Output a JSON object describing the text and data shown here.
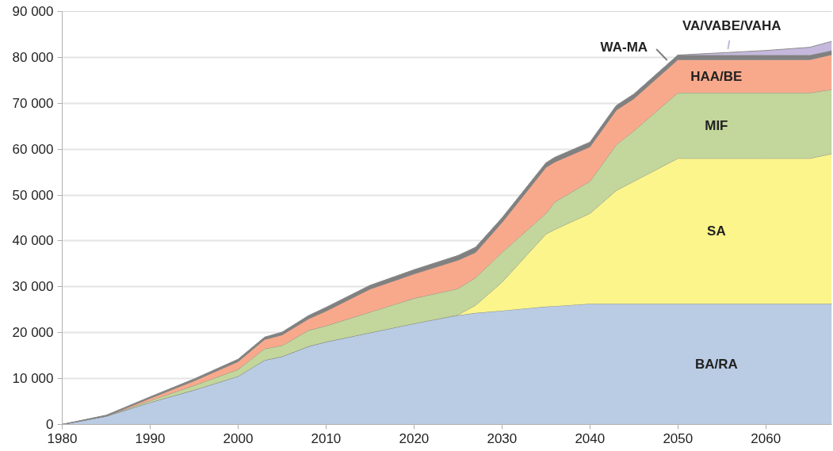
{
  "chart_data": {
    "type": "area",
    "stacked": true,
    "grid": "y",
    "x": [
      1980,
      1985,
      1990,
      1995,
      2000,
      2003,
      2005,
      2008,
      2010,
      2015,
      2020,
      2025,
      2027,
      2030,
      2035,
      2036,
      2040,
      2043,
      2045,
      2050,
      2060,
      2065,
      2067.5
    ],
    "series": [
      {
        "name": "BA/RA",
        "color": "#b9cce4",
        "values": [
          0,
          1800,
          4800,
          7500,
          10500,
          14000,
          14800,
          17000,
          18000,
          20000,
          22000,
          23800,
          24300,
          24800,
          25700,
          25800,
          26300,
          26300,
          26300,
          26300,
          26300,
          26300,
          26300
        ]
      },
      {
        "name": "SA",
        "color": "#fbf58c",
        "values": [
          0,
          0,
          0,
          0,
          0,
          0,
          0,
          0,
          0,
          0,
          0,
          100,
          1700,
          6200,
          15800,
          16700,
          19700,
          24700,
          26700,
          31700,
          31700,
          31700,
          32700
        ]
      },
      {
        "name": "MIF",
        "color": "#c3d69b",
        "values": [
          0,
          0,
          400,
          1000,
          1500,
          2500,
          2400,
          3500,
          3500,
          4500,
          5500,
          5700,
          6000,
          6500,
          4500,
          6000,
          7000,
          10000,
          11000,
          14300,
          14300,
          14300,
          14000
        ]
      },
      {
        "name": "HAA/BE",
        "color": "#f9a98b",
        "values": [
          0,
          0,
          500,
          1000,
          1700,
          2000,
          2300,
          2500,
          3200,
          5000,
          5300,
          6200,
          5500,
          6500,
          10000,
          8700,
          7500,
          7500,
          7000,
          7200,
          7200,
          7200,
          7600
        ]
      },
      {
        "name": "WA-MA",
        "color": "#808080",
        "values": [
          0,
          200,
          300,
          400,
          500,
          500,
          600,
          700,
          800,
          800,
          900,
          1000,
          1100,
          1000,
          1000,
          1000,
          1000,
          1000,
          1000,
          1000,
          1000,
          1000,
          900
        ]
      },
      {
        "name": "VA/VABE/VAHA",
        "color": "#c5b8dc",
        "values": [
          0,
          0,
          0,
          0,
          0,
          0,
          0,
          0,
          0,
          0,
          0,
          0,
          0,
          0,
          0,
          0,
          0,
          0,
          0,
          0,
          1000,
          1700,
          2000
        ]
      }
    ],
    "xlim": [
      1980,
      2067.5
    ],
    "xticks": [
      1980,
      1990,
      2000,
      2010,
      2020,
      2030,
      2040,
      2050,
      2060
    ],
    "ylim": [
      0,
      90000
    ],
    "yticks": [
      {
        "value": 0,
        "label": "0"
      },
      {
        "value": 10000,
        "label": "10 000"
      },
      {
        "value": 20000,
        "label": "20 000"
      },
      {
        "value": 30000,
        "label": "30 000"
      },
      {
        "value": 40000,
        "label": "40 000"
      },
      {
        "value": 50000,
        "label": "50 000"
      },
      {
        "value": 60000,
        "label": "60 000"
      },
      {
        "value": 70000,
        "label": "70 000"
      },
      {
        "value": 80000,
        "label": "80 000"
      },
      {
        "value": 90000,
        "label": "90 000"
      }
    ]
  }
}
